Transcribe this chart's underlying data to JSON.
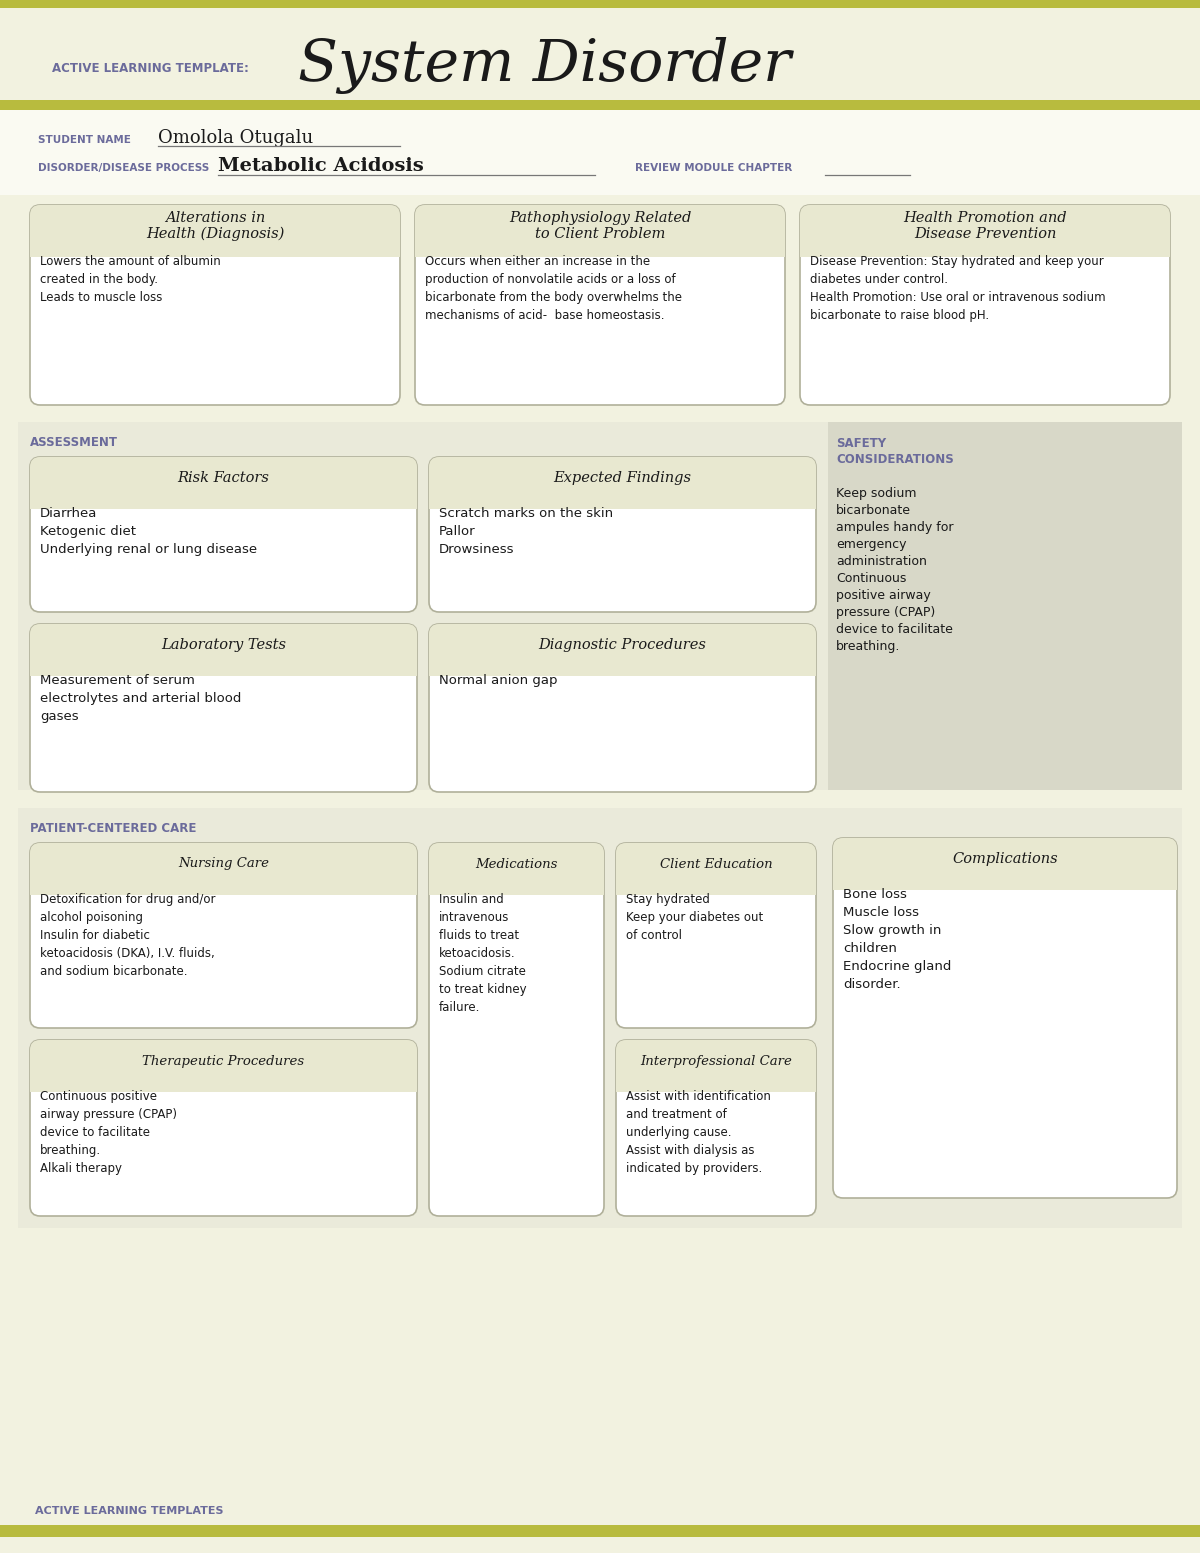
{
  "bg_color": "#f2f2e0",
  "page_white": "#ffffff",
  "olive_bar": "#b8bb3e",
  "section_bg": "#eaeada",
  "safety_bg": "#d8d8c8",
  "box_bg": "#ffffff",
  "box_header_bg": "#e8e8d0",
  "box_border": "#b0b09a",
  "purple": "#6b6b9b",
  "dark": "#1a1a1a",
  "title_template": "ACTIVE LEARNING TEMPLATE:",
  "title_main": "System Disorder",
  "student_label": "STUDENT NAME",
  "student_name": "Omolola Otugalu",
  "disorder_label": "DISORDER/DISEASE PROCESS",
  "disorder_name": "Metabolic Acidosis",
  "review_label": "REVIEW MODULE CHAPTER",
  "box1_title": "Alterations in\nHealth (Diagnosis)",
  "box1_content": "Lowers the amount of albumin\ncreated in the body.\nLeads to muscle loss",
  "box2_title": "Pathophysiology Related\nto Client Problem",
  "box2_content": "Occurs when either an increase in the\nproduction of nonvolatile acids or a loss of\nbicarbonate from the body overwhelms the\nmechanisms of acid-  base homeostasis.",
  "box3_title": "Health Promotion and\nDisease Prevention",
  "box3_content": "Disease Prevention: Stay hydrated and keep your\ndiabetes under control.\nHealth Promotion: Use oral or intravenous sodium\nbicarbonate to raise blood pH.",
  "assessment_label": "ASSESSMENT",
  "safety_label": "SAFETY\nCONSIDERATIONS",
  "risk_title": "Risk Factors",
  "risk_content": "Diarrhea\nKetogenic diet\nUnderlying renal or lung disease",
  "expected_title": "Expected Findings",
  "expected_content": "Scratch marks on the skin\nPallor\nDrowsiness",
  "safety_content": "Keep sodium\nbicarbonate\nampules handy for\nemergency\nadministration\nContinuous\npositive airway\npressure (CPAP)\ndevice to facilitate\nbreathing.",
  "lab_title": "Laboratory Tests",
  "lab_content": "Measurement of serum\nelectrolytes and arterial blood\ngases",
  "diag_title": "Diagnostic Procedures",
  "diag_content": "Normal anion gap",
  "patient_label": "PATIENT-CENTERED CARE",
  "complications_title": "Complications",
  "complications_content": "Bone loss\nMuscle loss\nSlow growth in\nchildren\nEndocrine gland\ndisorder.",
  "nursing_title": "Nursing Care",
  "nursing_content": "Detoxification for drug and/or\nalcohol poisoning\nInsulin for diabetic\nketoacidosis (DKA), I.V. fluids,\nand sodium bicarbonate.",
  "meds_title": "Medications",
  "meds_content": "Insulin and\nintravenous\nfluids to treat\nketoacidosis.\nSodium citrate\nto treat kidney\nfailure.",
  "client_title": "Client Education",
  "client_content": "Stay hydrated\nKeep your diabetes out\nof control",
  "therapeutic_title": "Therapeutic Procedures",
  "therapeutic_content": "Continuous positive\nairway pressure (CPAP)\ndevice to facilitate\nbreathing.\nAlkali therapy",
  "interpro_title": "Interprofessional Care",
  "interpro_content": "Assist with identification\nand treatment of\nunderlying cause.\nAssist with dialysis as\nindicated by providers.",
  "footer": "ACTIVE LEARNING TEMPLATES"
}
